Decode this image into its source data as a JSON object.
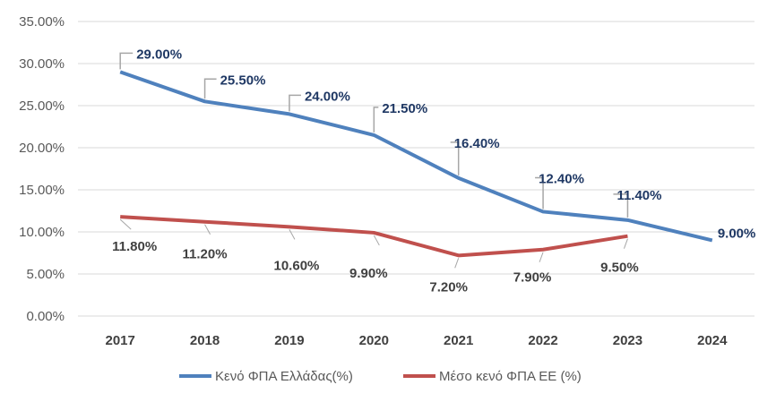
{
  "chart_data": {
    "type": "line",
    "title": "",
    "xlabel": "",
    "ylabel": "",
    "ylim": [
      0,
      35
    ],
    "y_ticks": [
      "0.00%",
      "5.00%",
      "10.00%",
      "15.00%",
      "20.00%",
      "25.00%",
      "30.00%",
      "35.00%"
    ],
    "y_tick_values": [
      0,
      5,
      10,
      15,
      20,
      25,
      30,
      35
    ],
    "categories": [
      "2017",
      "2018",
      "2019",
      "2020",
      "2021",
      "2022",
      "2023",
      "2024"
    ],
    "grid": true,
    "legend_position": "bottom",
    "series": [
      {
        "name": "Κενό ΦΠΑ Ελλάδας(%)",
        "color": "#4f81bd",
        "values": [
          29.0,
          25.5,
          24.0,
          21.5,
          16.4,
          12.4,
          11.4,
          9.0
        ],
        "labels": [
          "29.00%",
          "25.50%",
          "24.00%",
          "21.50%",
          "16.40%",
          "12.40%",
          "11.40%",
          "9.00%"
        ]
      },
      {
        "name": "Μέσο κενό ΦΠΑ ΕΕ (%)",
        "color": "#c0504d",
        "values": [
          11.8,
          11.2,
          10.6,
          9.9,
          7.2,
          7.9,
          9.5,
          null
        ],
        "labels": [
          "11.80%",
          "11.20%",
          "10.60%",
          "9.90%",
          "7.20%",
          "7.90%",
          "9.50%",
          null
        ]
      }
    ]
  }
}
